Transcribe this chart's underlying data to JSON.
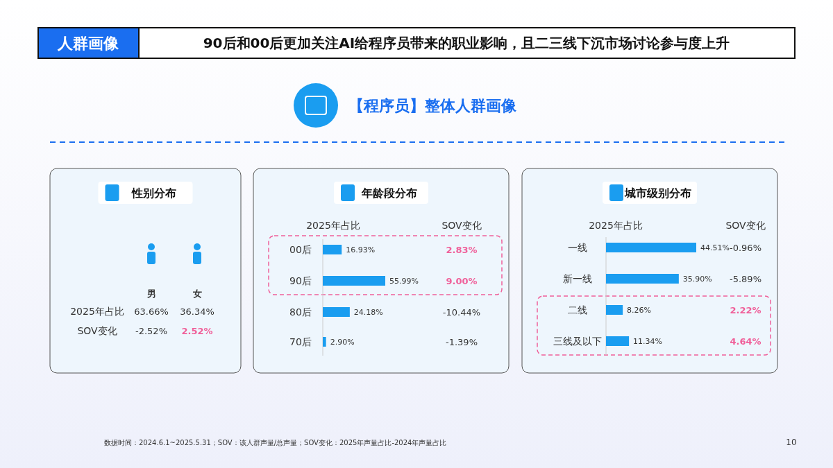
{
  "chart_data": [
    {
      "type": "other",
      "title": "90后和00后更加关注AI给程序员带来的职业影响，且二三线下沉市场讨论参与度上升",
      "subtitle": "【程序员】整体人群画像",
      "annotations": [
        "人群画像",
        "数据时间：2024.6.1~2025.5.31；SOV：该人群声量/总声量；SOV变化：2025年声量占比-2024年声量占比",
        "10"
      ]
    },
    {
      "type": "other",
      "title": "性别分布",
      "categories": [
        "男",
        "女"
      ],
      "series": [
        {
          "name": "2025年占比",
          "values": [
            63.66,
            36.34
          ],
          "value_labels": [
            "63.66%",
            "36.34%"
          ]
        },
        {
          "name": "SOV变化",
          "values": [
            -2.52,
            2.52
          ],
          "value_labels": [
            "-2.52%",
            "2.52%"
          ],
          "colors": [
            "#333333",
            "#f0609a"
          ]
        }
      ]
    },
    {
      "type": "bar",
      "orientation": "horizontal",
      "title": "年龄段分布",
      "categories": [
        "00后",
        "90后",
        "80后",
        "70后"
      ],
      "series": [
        {
          "name": "2025年占比",
          "color": "#1a9df0",
          "values": [
            16.93,
            55.99,
            24.18,
            2.9
          ],
          "value_labels": [
            "16.93%",
            "55.99%",
            "24.18%",
            "2.90%"
          ]
        }
      ]
    },
    {
      "type": "other",
      "series": [
        {
          "name": "SOV变化",
          "values": [
            2.83,
            9.0,
            -10.44,
            -1.39
          ],
          "value_labels": [
            "2.83%",
            "9.00%",
            "-10.44%",
            "-1.39%"
          ],
          "colors": [
            "#f0609a",
            "#f0609a",
            "#333333",
            "#333333"
          ]
        }
      ]
    },
    {
      "type": "bar",
      "orientation": "horizontal",
      "title": "城市级别分布",
      "categories": [
        "一线",
        "新一线",
        "二线",
        "三线及以下"
      ],
      "series": [
        {
          "name": "2025年占比",
          "color": "#1a9df0",
          "values": [
            44.51,
            35.9,
            8.26,
            11.34
          ],
          "value_labels": [
            "44.51%",
            "35.90%",
            "8.26%",
            "11.34%"
          ]
        }
      ]
    },
    {
      "type": "other",
      "series": [
        {
          "name": "SOV变化",
          "values": [
            -0.96,
            -5.89,
            2.22,
            4.64
          ],
          "value_labels": [
            "-0.96%",
            "-5.89%",
            "2.22%",
            "4.64%"
          ],
          "colors": [
            "#333333",
            "#333333",
            "#f0609a",
            "#f0609a"
          ]
        }
      ]
    }
  ]
}
